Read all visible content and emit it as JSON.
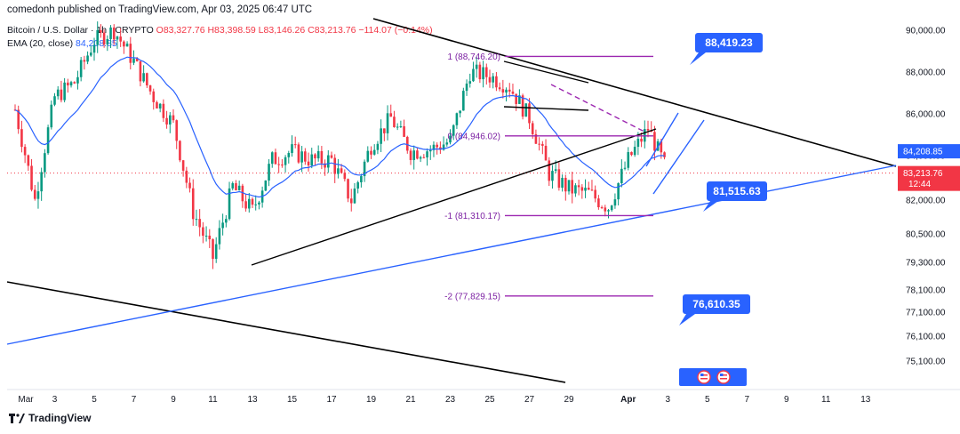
{
  "header": {
    "credit": "comedonh published on TradingView.com, Apr 03, 2025 06:47 UTC"
  },
  "legend": {
    "symbol": "Bitcoin / U.S. Dollar · 1h · CRYPTO",
    "ohlc": "O83,327.76 H83,398.59 L83,146.26 C83,213.76 −114.07 (−0.14%)",
    "ema_label": "EMA (20, close)",
    "ema_value": "84,208.85"
  },
  "brand": {
    "name": "TradingView"
  },
  "colors": {
    "up": "#089981",
    "down": "#f23645",
    "ema": "#2962ff",
    "fib": "#9c27b0",
    "trend": "#000000",
    "support": "#2962ff",
    "callout": "#2962ff",
    "current": "#f23645"
  },
  "chart_data": {
    "type": "line",
    "title": "Bitcoin / U.S. Dollar · 1h · CRYPTO",
    "y_axis_ticks": [
      "90,000.00",
      "88,000.00",
      "86,000.00",
      "84,000.00",
      "82,000.00",
      "80,500.00",
      "79,300.00",
      "78,100.00",
      "77,100.00",
      "76,100.00",
      "75,100.00"
    ],
    "x_axis_ticks": [
      "Mar",
      "3",
      "5",
      "7",
      "9",
      "11",
      "13",
      "15",
      "17",
      "19",
      "21",
      "23",
      "25",
      "27",
      "29",
      "Apr",
      "3",
      "5",
      "7",
      "9",
      "11",
      "13"
    ],
    "x": [
      "Mar 1",
      "Mar 2",
      "Mar 3",
      "Mar 4",
      "Mar 5",
      "Mar 6",
      "Mar 7",
      "Mar 8",
      "Mar 9",
      "Mar 10",
      "Mar 11",
      "Mar 12",
      "Mar 13",
      "Mar 14",
      "Mar 15",
      "Mar 16",
      "Mar 17",
      "Mar 18",
      "Mar 19",
      "Mar 20",
      "Mar 21",
      "Mar 22",
      "Mar 23",
      "Mar 24",
      "Mar 25",
      "Mar 26",
      "Mar 27",
      "Mar 28",
      "Mar 29",
      "Mar 30",
      "Mar 31",
      "Apr 1",
      "Apr 2",
      "Apr 3"
    ],
    "series": [
      {
        "values": [
          86200,
          82000,
          86800,
          87500,
          89500,
          90000,
          88500,
          86800,
          85500,
          81500,
          79500,
          82600,
          81500,
          83800,
          84200,
          83800,
          83800,
          82000,
          84500,
          85800,
          84200,
          84300,
          84700,
          88000,
          87800,
          87300,
          85800,
          83200,
          82500,
          82300,
          81700,
          83800,
          85300,
          83200
        ]
      }
    ],
    "ema_20": {
      "name": "EMA (20, close)",
      "current": 84208.85
    },
    "fibonacci_levels": [
      {
        "label": "1 (88,746.20)",
        "level": 1,
        "price": 88746.2
      },
      {
        "label": "0 (84,946.02)",
        "level": 0,
        "price": 84946.02
      },
      {
        "label": "-1 (81,310.17)",
        "level": -1,
        "price": 81310.17
      },
      {
        "label": "-2 (77,829.15)",
        "level": -2,
        "price": 77829.15
      }
    ],
    "callouts": [
      "88,419.23",
      "81,515.63",
      "76,610.35"
    ],
    "current_price_tag": {
      "price": "83,213.76",
      "countdown": "12:44"
    },
    "ema_price_tag": "84,208.85"
  }
}
